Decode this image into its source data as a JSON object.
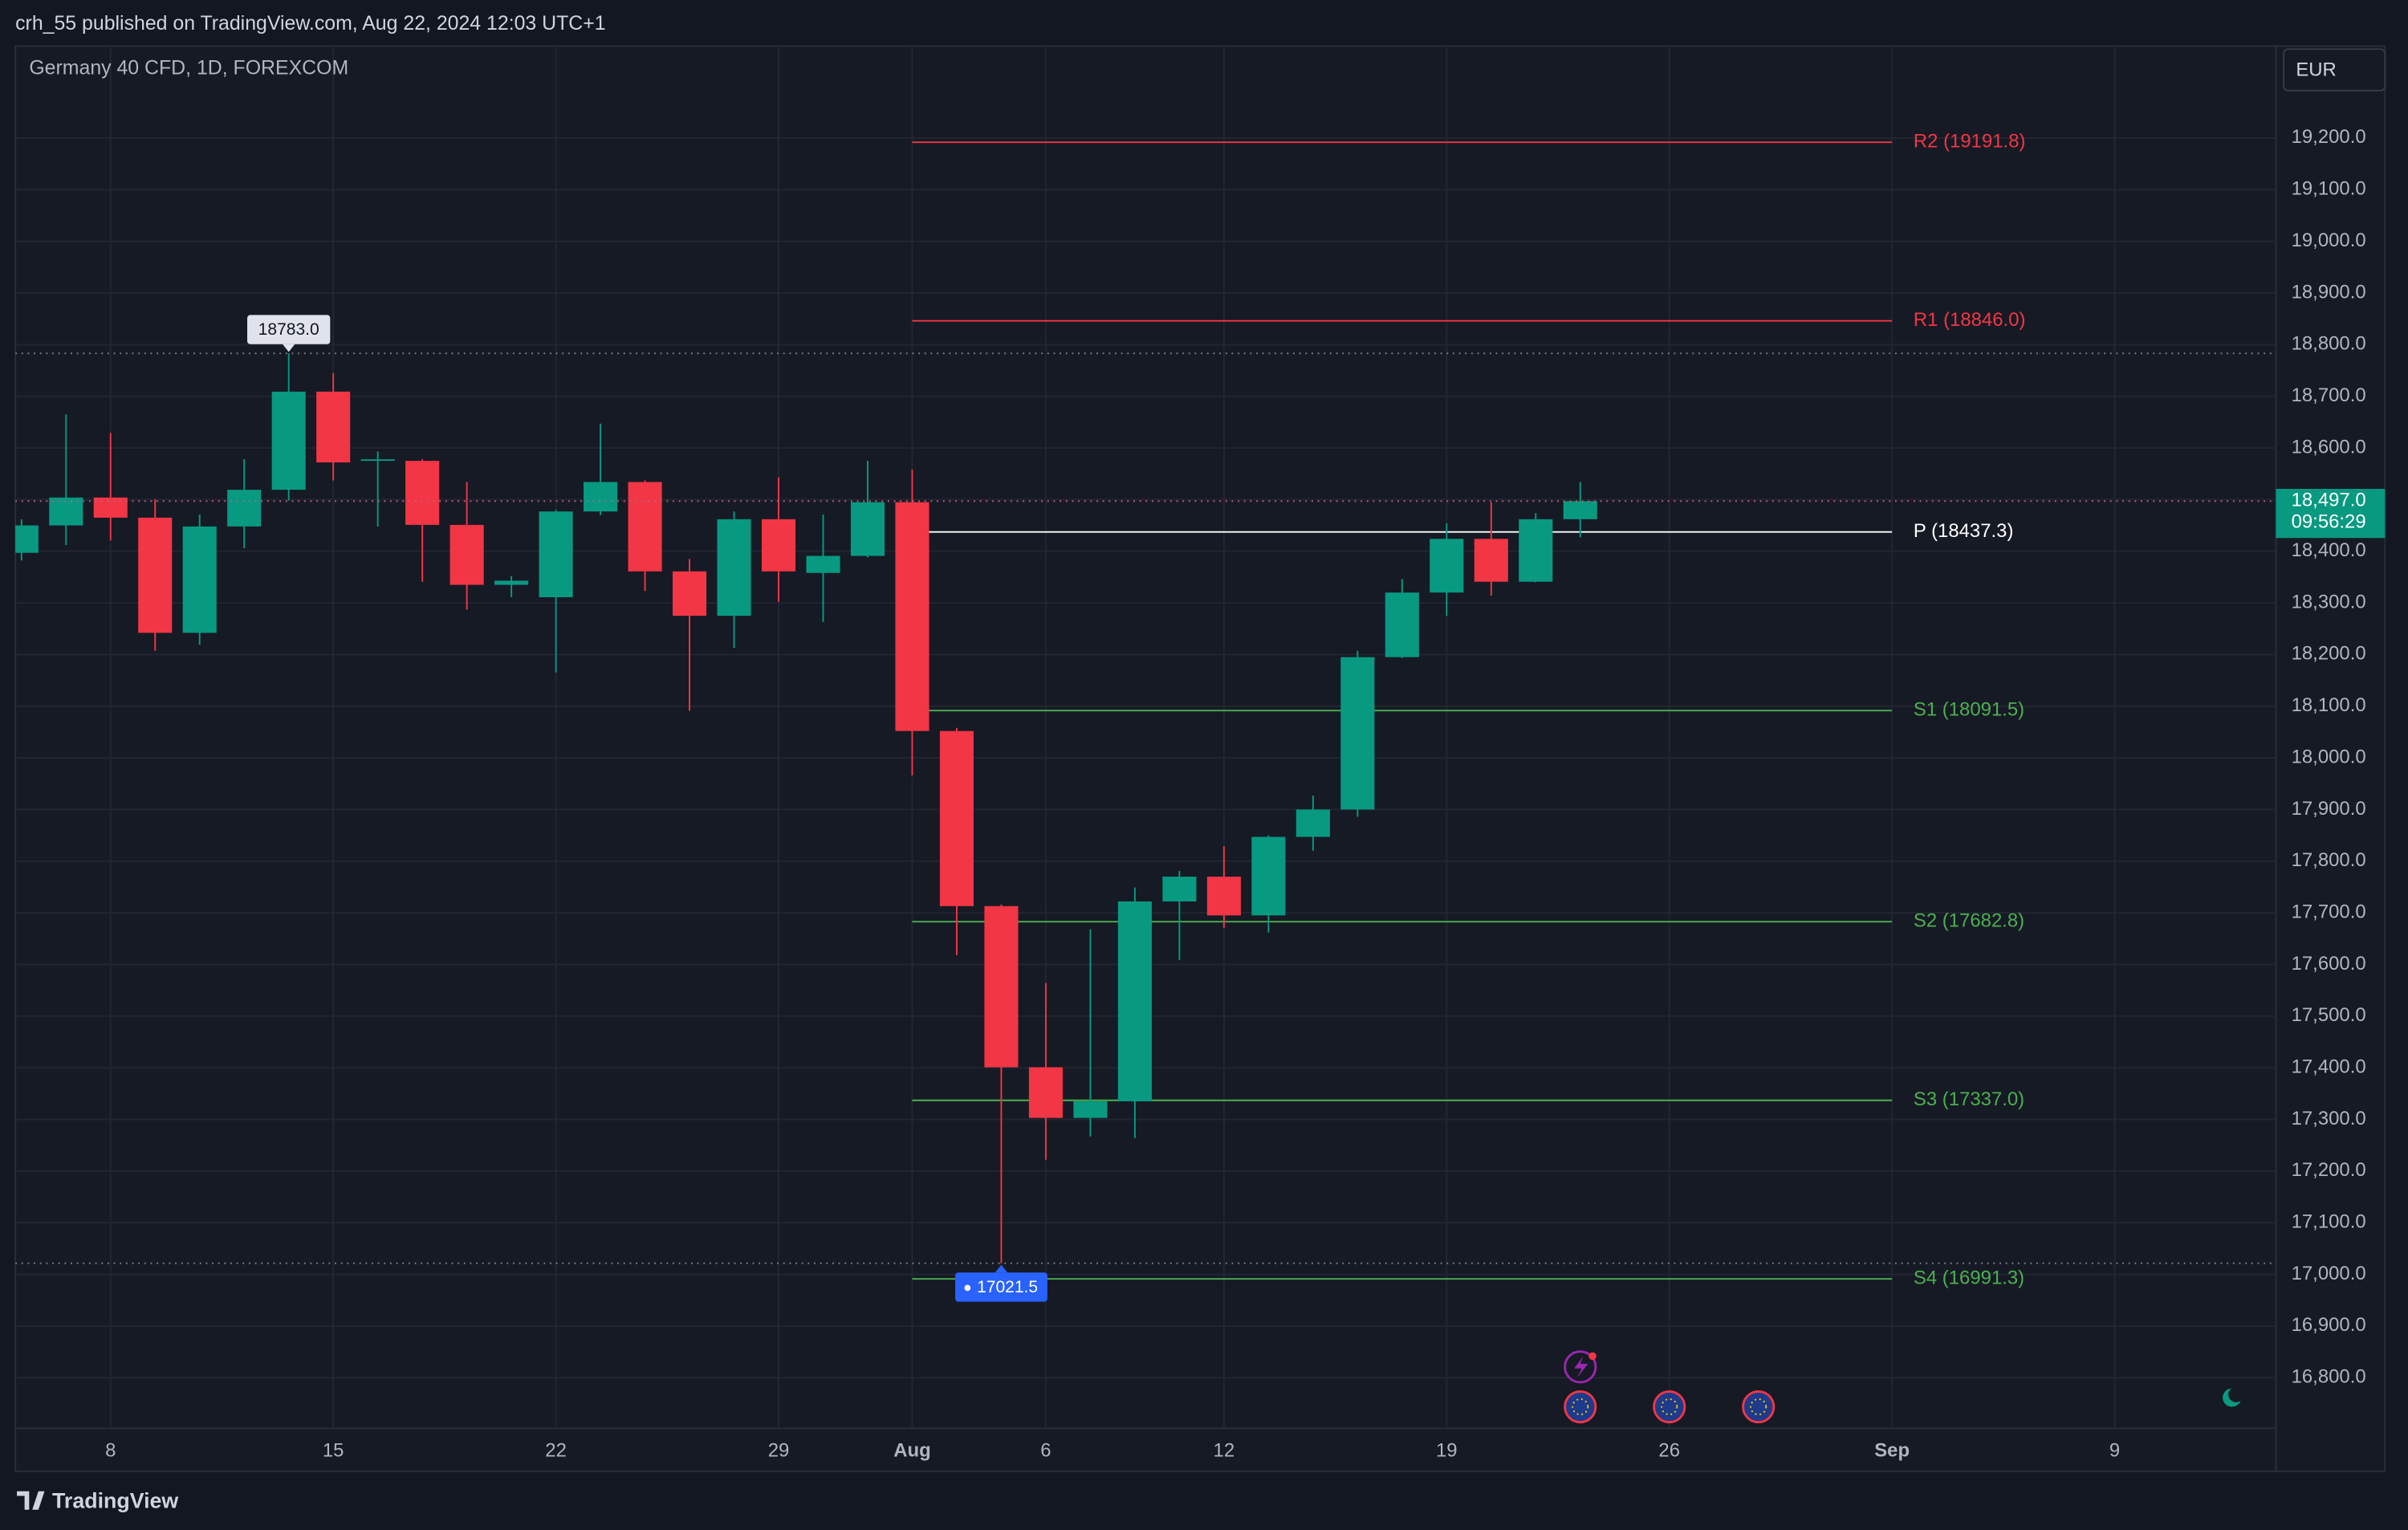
{
  "header": "crh_55 published on TradingView.com, Aug 22, 2024 12:03 UTC+1",
  "footer": "TradingView",
  "chart_data": {
    "type": "candlestick",
    "title": "Germany 40 CFD, 1D, FOREXCOM",
    "currency": "EUR",
    "categories": [
      null,
      null,
      "8",
      null,
      null,
      null,
      null,
      "15",
      null,
      null,
      null,
      null,
      "22",
      null,
      null,
      null,
      null,
      "29",
      null,
      null,
      "Aug",
      null,
      null,
      "6",
      null,
      null,
      null,
      "12",
      null,
      null,
      null,
      null,
      "19",
      null,
      null,
      null,
      null,
      "26",
      null,
      null,
      null,
      null,
      "Sep",
      null,
      null,
      null,
      null,
      "9",
      null,
      null,
      null
    ],
    "open": [
      18397,
      18450,
      18504,
      18465,
      18242,
      18448,
      18519,
      18709,
      18575,
      18575,
      18451,
      18335,
      18311,
      18477,
      18534,
      18361,
      18275,
      18462,
      18358,
      18391,
      18495,
      18052,
      17713,
      17401,
      17303,
      17335,
      17722,
      17770,
      17695,
      17847,
      17900,
      18195,
      18320,
      18424,
      18341,
      18462,
      null,
      null,
      null,
      null,
      null,
      null,
      null,
      null,
      null,
      null,
      null,
      null,
      null,
      null,
      null
    ],
    "high": [
      18462,
      18665,
      18629,
      18501,
      18471,
      18578,
      18783,
      18745,
      18593,
      18578,
      18534,
      18352,
      18480,
      18647,
      18537,
      18385,
      18477,
      18543,
      18471,
      18575,
      18558,
      18058,
      17716,
      17564,
      17668,
      17749,
      17781,
      17829,
      17850,
      17927,
      18207,
      18346,
      18454,
      18495,
      18474,
      18534,
      null,
      null,
      null,
      null,
      null,
      null,
      null,
      null,
      null,
      null,
      null,
      null,
      null,
      null,
      null
    ],
    "low": [
      18382,
      18412,
      18421,
      18207,
      18219,
      18406,
      18498,
      18537,
      18448,
      18341,
      18287,
      18311,
      18165,
      18470,
      18323,
      18091,
      18213,
      18302,
      18263,
      18388,
      17966,
      17618,
      17021.5,
      17222,
      17267,
      17264,
      17609,
      17671,
      17662,
      17820,
      17886,
      18193,
      18275,
      18314,
      18340,
      18427,
      null,
      null,
      null,
      null,
      null,
      null,
      null,
      null,
      null,
      null,
      null,
      null,
      null,
      null,
      null
    ],
    "close": [
      18450,
      18504,
      18465,
      18242,
      18448,
      18519,
      18709,
      18572,
      18578,
      18451,
      18335,
      18343,
      18477,
      18534,
      18361,
      18275,
      18462,
      18361,
      18391,
      18495,
      18052,
      17713,
      17401,
      17303,
      17335,
      17722,
      17770,
      17695,
      17847,
      17900,
      18195,
      18320,
      18424,
      18341,
      18462,
      18497,
      null,
      null,
      null,
      null,
      null,
      null,
      null,
      null,
      null,
      null,
      null,
      null,
      null,
      null,
      null
    ],
    "up_color": "#089981",
    "down_color": "#f23645",
    "ylim": [
      16702,
      19378
    ],
    "yticks": [
      {
        "value": 16800,
        "label": "16,800.0"
      },
      {
        "value": 16900,
        "label": "16,900.0"
      },
      {
        "value": 17000,
        "label": "17,000.0"
      },
      {
        "value": 17100,
        "label": "17,100.0"
      },
      {
        "value": 17200,
        "label": "17,200.0"
      },
      {
        "value": 17300,
        "label": "17,300.0"
      },
      {
        "value": 17400,
        "label": "17,400.0"
      },
      {
        "value": 17500,
        "label": "17,500.0"
      },
      {
        "value": 17600,
        "label": "17,600.0"
      },
      {
        "value": 17700,
        "label": "17,700.0"
      },
      {
        "value": 17800,
        "label": "17,800.0"
      },
      {
        "value": 17900,
        "label": "17,900.0"
      },
      {
        "value": 18000,
        "label": "18,000.0"
      },
      {
        "value": 18100,
        "label": "18,100.0"
      },
      {
        "value": 18200,
        "label": "18,200.0"
      },
      {
        "value": 18300,
        "label": "18,300.0"
      },
      {
        "value": 18400,
        "label": "18,400.0"
      },
      {
        "value": 18500,
        "label": "18,500.0"
      },
      {
        "value": 18600,
        "label": "18,600.0"
      },
      {
        "value": 18700,
        "label": "18,700.0"
      },
      {
        "value": 18800,
        "label": "18,800.0"
      },
      {
        "value": 18900,
        "label": "18,900.0"
      },
      {
        "value": 19000,
        "label": "19,000.0"
      },
      {
        "value": 19100,
        "label": "19,100.0"
      },
      {
        "value": 19200,
        "label": "19,200.0"
      }
    ],
    "grid": true,
    "pivot_from": 20,
    "pivot_to": 42,
    "pivots": [
      {
        "label": "R2 (19191.8)",
        "value": 19191.8,
        "color": "#f23645"
      },
      {
        "label": "R1 (18846.0)",
        "value": 18846.0,
        "color": "#f23645"
      },
      {
        "label": "P (18437.3)",
        "value": 18437.3,
        "color": "#ffffff"
      },
      {
        "label": "S1 (18091.5)",
        "value": 18091.5,
        "color": "#4caf50"
      },
      {
        "label": "S2 (17682.8)",
        "value": 17682.8,
        "color": "#4caf50"
      },
      {
        "label": "S3 (17337.0)",
        "value": 17337.0,
        "color": "#4caf50"
      },
      {
        "label": "S4 (16991.3)",
        "value": 16991.3,
        "color": "#4caf50"
      }
    ],
    "high_marker": {
      "value": 18783,
      "label": "18783.0"
    },
    "low_marker": {
      "value": 17021.5,
      "label": "17021.5"
    },
    "last_price": {
      "value": 18497,
      "label": "18,497.0",
      "countdown": "09:56:29"
    }
  }
}
